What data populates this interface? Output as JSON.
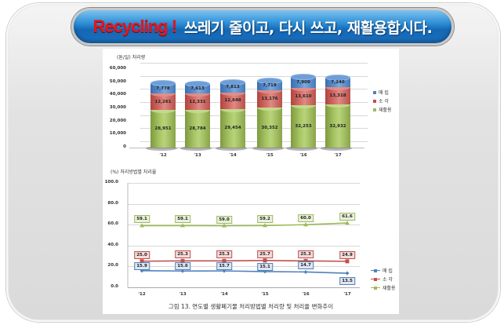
{
  "header": {
    "accent": "Recycling !",
    "title": "쓰레기 줄이고, 다시 쓰고, 재활용합시다."
  },
  "colors": {
    "title_accent": "#e8141c",
    "title_bg": "#1a6fbd",
    "landfill": "#4f81bd",
    "incineration": "#c0504d",
    "recycling": "#9bbb59"
  },
  "chart_data": [
    {
      "type": "bar",
      "stacked": true,
      "title": "",
      "ylabel": "(톤/일) 처리량",
      "xlabel": "",
      "categories": [
        "'12",
        "'13",
        "'14",
        "'15",
        "'16",
        "'17"
      ],
      "yticks": [
        "60,000",
        "50,000",
        "40,000",
        "30,000",
        "20,000",
        "10,000",
        "0"
      ],
      "ylim": [
        0,
        60000
      ],
      "grid": true,
      "legend_position": "right",
      "series": [
        {
          "name": "재활용",
          "color": "#9bbb59",
          "values": [
            28951,
            28784,
            29454,
            30352,
            32253,
            32932
          ],
          "labels": [
            "28,951",
            "28,784",
            "29,454",
            "30,352",
            "32,253",
            "32,932"
          ]
        },
        {
          "name": "소 각",
          "color": "#c0504d",
          "values": [
            12261,
            12331,
            12648,
            13176,
            13610,
            13318
          ],
          "labels": [
            "12,261",
            "12,331",
            "12,648",
            "13,176",
            "13,610",
            "13,318"
          ]
        },
        {
          "name": "매 립",
          "color": "#4f81bd",
          "values": [
            7778,
            7613,
            7813,
            7719,
            7909,
            7240
          ],
          "labels": [
            "7,778",
            "7,613",
            "7,813",
            "7,719",
            "7,909",
            "7,240"
          ]
        }
      ],
      "legend": [
        "매 립",
        "소 각",
        "재활용"
      ]
    },
    {
      "type": "line",
      "title": "",
      "ylabel": "(%) 처리방법별 처리율",
      "xlabel": "",
      "categories": [
        "'12",
        "'13",
        "'14",
        "'15",
        "'16",
        "'17"
      ],
      "yticks": [
        "100.0",
        "80.0",
        "60.0",
        "40.0",
        "20.0",
        "0.0"
      ],
      "ylim": [
        0,
        100
      ],
      "grid": true,
      "legend_position": "right",
      "series": [
        {
          "name": "매 립",
          "color": "#4f81bd",
          "marker": "diamond",
          "values": [
            15.9,
            15.6,
            15.7,
            15.1,
            14.7,
            13.5
          ],
          "labels": [
            "15.9",
            "15.6",
            "15.7",
            "15.1",
            "14.7",
            "13.5"
          ]
        },
        {
          "name": "소 각",
          "color": "#c0504d",
          "marker": "square",
          "values": [
            25.0,
            25.3,
            25.3,
            25.7,
            25.3,
            24.9
          ],
          "labels": [
            "25.0",
            "25.3",
            "25.3",
            "25.7",
            "25.3",
            "24.9"
          ]
        },
        {
          "name": "재활용",
          "color": "#9bbb59",
          "marker": "triangle",
          "values": [
            59.1,
            59.1,
            59.0,
            59.2,
            60.0,
            61.6
          ],
          "labels": [
            "59.1",
            "59.1",
            "59.0",
            "59.2",
            "60.0",
            "61.6"
          ]
        }
      ],
      "legend": [
        "매 립",
        "소 각",
        "재활용"
      ]
    }
  ],
  "caption": "그림 13. 연도별 생활폐기물 처리방법별 처리량 및 처리율 변화추이"
}
